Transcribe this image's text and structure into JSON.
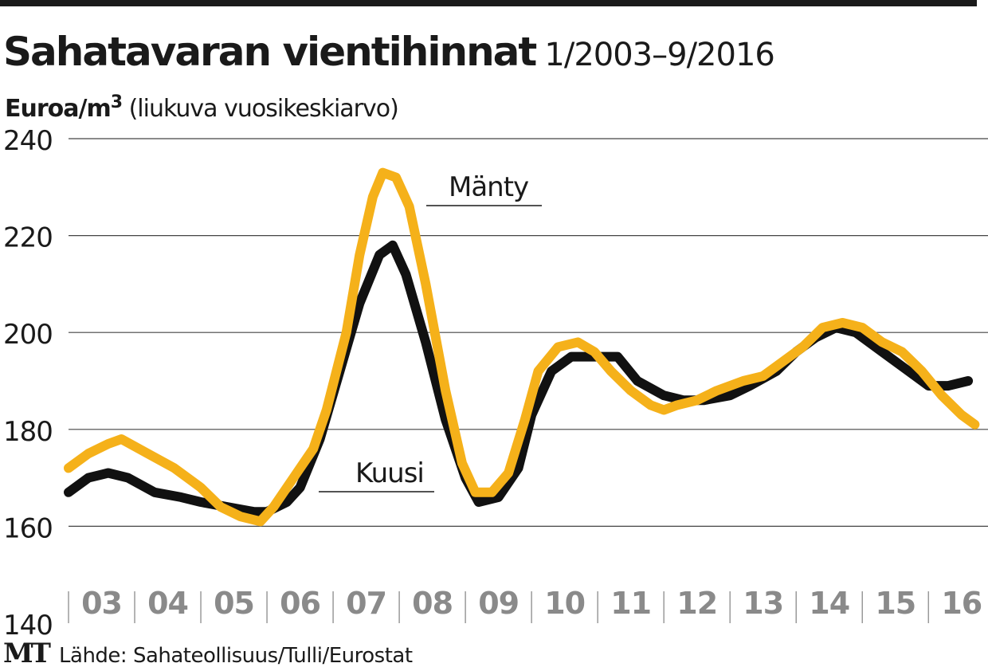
{
  "header": {
    "title": "Sahatavaran vientihinnat",
    "period": "1/2003–9/2016",
    "unit": "Euroa/m",
    "unit_sup": "3",
    "unit_note": "(liukuva vuosikeskiarvo)"
  },
  "footer": {
    "logo": "MT",
    "source": "Lähde: Sahateollisuus/Tulli/Eurostat"
  },
  "colors": {
    "kuusi": "#111111",
    "manty": "#f5b11a",
    "grid": "#444444",
    "axis_labels": "#8a8a8a"
  },
  "chart_data": {
    "type": "line",
    "title": "Sahatavaran vientihinnat",
    "ylabel": "Euroa/m3 (liukuva vuosikeskiarvo)",
    "ylim": [
      140,
      240
    ],
    "yticks": [
      "140",
      "160",
      "180",
      "200",
      "220",
      "240"
    ],
    "categories": [
      "03",
      "04",
      "05",
      "06",
      "07",
      "08",
      "09",
      "10",
      "11",
      "12",
      "13",
      "14",
      "15",
      "16"
    ],
    "grid": "horizontal",
    "x_unit": "year (decimal, 2003.0 = Jan 2003)",
    "series": [
      {
        "name": "Kuusi",
        "label": "Kuusi",
        "color": "#111111",
        "points": [
          [
            2003.0,
            167
          ],
          [
            2003.3,
            170
          ],
          [
            2003.6,
            171
          ],
          [
            2003.9,
            170
          ],
          [
            2004.3,
            167
          ],
          [
            2004.7,
            166
          ],
          [
            2005.0,
            165
          ],
          [
            2005.4,
            164
          ],
          [
            2005.8,
            163
          ],
          [
            2006.0,
            163
          ],
          [
            2006.3,
            165
          ],
          [
            2006.5,
            168
          ],
          [
            2006.8,
            178
          ],
          [
            2007.1,
            192
          ],
          [
            2007.4,
            206
          ],
          [
            2007.7,
            216
          ],
          [
            2007.9,
            218
          ],
          [
            2008.1,
            212
          ],
          [
            2008.4,
            198
          ],
          [
            2008.7,
            182
          ],
          [
            2009.0,
            170
          ],
          [
            2009.2,
            165
          ],
          [
            2009.5,
            166
          ],
          [
            2009.8,
            172
          ],
          [
            2010.0,
            183
          ],
          [
            2010.3,
            192
          ],
          [
            2010.6,
            195
          ],
          [
            2011.0,
            195
          ],
          [
            2011.3,
            195
          ],
          [
            2011.6,
            190
          ],
          [
            2012.0,
            187
          ],
          [
            2012.3,
            186
          ],
          [
            2012.6,
            186
          ],
          [
            2013.0,
            187
          ],
          [
            2013.3,
            189
          ],
          [
            2013.7,
            192
          ],
          [
            2014.0,
            196
          ],
          [
            2014.3,
            199
          ],
          [
            2014.6,
            201
          ],
          [
            2014.9,
            200
          ],
          [
            2015.3,
            196
          ],
          [
            2015.7,
            192
          ],
          [
            2016.0,
            189
          ],
          [
            2016.3,
            189
          ],
          [
            2016.6,
            190
          ]
        ]
      },
      {
        "name": "Mänty",
        "label": "Mänty",
        "color": "#f5b11a",
        "points": [
          [
            2003.0,
            172
          ],
          [
            2003.3,
            175
          ],
          [
            2003.6,
            177
          ],
          [
            2003.8,
            178
          ],
          [
            2004.2,
            175
          ],
          [
            2004.6,
            172
          ],
          [
            2005.0,
            168
          ],
          [
            2005.3,
            164
          ],
          [
            2005.6,
            162
          ],
          [
            2005.9,
            161
          ],
          [
            2006.1,
            164
          ],
          [
            2006.4,
            170
          ],
          [
            2006.7,
            176
          ],
          [
            2006.9,
            184
          ],
          [
            2007.2,
            200
          ],
          [
            2007.4,
            216
          ],
          [
            2007.6,
            228
          ],
          [
            2007.75,
            233
          ],
          [
            2007.95,
            232
          ],
          [
            2008.15,
            226
          ],
          [
            2008.4,
            210
          ],
          [
            2008.7,
            188
          ],
          [
            2008.95,
            173
          ],
          [
            2009.15,
            167
          ],
          [
            2009.4,
            167
          ],
          [
            2009.65,
            171
          ],
          [
            2009.9,
            182
          ],
          [
            2010.1,
            192
          ],
          [
            2010.4,
            197
          ],
          [
            2010.7,
            198
          ],
          [
            2010.95,
            196
          ],
          [
            2011.2,
            192
          ],
          [
            2011.5,
            188
          ],
          [
            2011.8,
            185
          ],
          [
            2012.0,
            184
          ],
          [
            2012.2,
            185
          ],
          [
            2012.5,
            186
          ],
          [
            2012.8,
            188
          ],
          [
            2013.2,
            190
          ],
          [
            2013.5,
            191
          ],
          [
            2013.8,
            194
          ],
          [
            2014.1,
            197
          ],
          [
            2014.4,
            201
          ],
          [
            2014.7,
            202
          ],
          [
            2015.0,
            201
          ],
          [
            2015.3,
            198
          ],
          [
            2015.6,
            196
          ],
          [
            2015.9,
            192
          ],
          [
            2016.2,
            187
          ],
          [
            2016.5,
            183
          ],
          [
            2016.7,
            181
          ]
        ]
      }
    ],
    "annotations": [
      {
        "text": "Mänty",
        "series": "Mänty"
      },
      {
        "text": "Kuusi",
        "series": "Kuusi"
      }
    ]
  }
}
